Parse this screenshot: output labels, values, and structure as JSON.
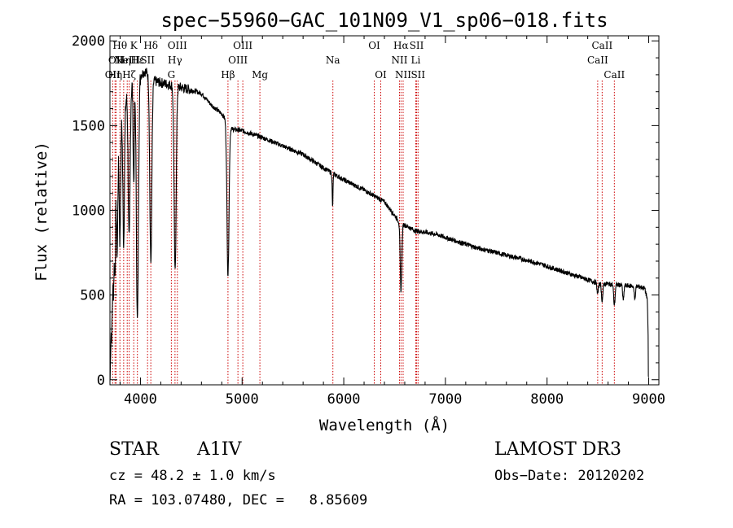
{
  "chart_data": {
    "type": "line",
    "title": "spec−55960−GAC_101N09_V1_sp06−018.fits",
    "xlabel": "Wavelength (Å)",
    "ylabel": "Flux (relative)",
    "xlim": [
      3700,
      9100
    ],
    "ylim": [
      -30,
      2030
    ],
    "x_ticks": [
      {
        "value": 4000,
        "label": "4000"
      },
      {
        "value": 5000,
        "label": "5000"
      },
      {
        "value": 6000,
        "label": "6000"
      },
      {
        "value": 7000,
        "label": "7000"
      },
      {
        "value": 8000,
        "label": "8000"
      },
      {
        "value": 9000,
        "label": "9000"
      }
    ],
    "y_ticks": [
      {
        "value": 0,
        "label": "0"
      },
      {
        "value": 500,
        "label": "500"
      },
      {
        "value": 1000,
        "label": "1000"
      },
      {
        "value": 1500,
        "label": "1500"
      },
      {
        "value": 2000,
        "label": "2000"
      }
    ],
    "continuum": [
      [
        3702,
        0
      ],
      [
        3712,
        450
      ],
      [
        3725,
        900
      ],
      [
        3740,
        1150
      ],
      [
        3760,
        1350
      ],
      [
        3790,
        1500
      ],
      [
        3830,
        1600
      ],
      [
        3880,
        1700
      ],
      [
        3940,
        1780
      ],
      [
        4000,
        1800
      ],
      [
        4050,
        1820
      ],
      [
        4150,
        1760
      ],
      [
        4300,
        1740
      ],
      [
        4500,
        1710
      ],
      [
        4600,
        1690
      ],
      [
        4700,
        1620
      ],
      [
        4800,
        1570
      ],
      [
        4900,
        1480
      ],
      [
        5000,
        1470
      ],
      [
        5200,
        1430
      ],
      [
        5400,
        1380
      ],
      [
        5600,
        1330
      ],
      [
        5800,
        1250
      ],
      [
        6000,
        1180
      ],
      [
        6200,
        1120
      ],
      [
        6400,
        1050
      ],
      [
        6550,
        930
      ],
      [
        6700,
        880
      ],
      [
        6900,
        860
      ],
      [
        7100,
        820
      ],
      [
        7300,
        780
      ],
      [
        7500,
        750
      ],
      [
        7700,
        720
      ],
      [
        7900,
        690
      ],
      [
        8100,
        650
      ],
      [
        8300,
        610
      ],
      [
        8500,
        570
      ],
      [
        8700,
        560
      ],
      [
        8900,
        550
      ],
      [
        8960,
        540
      ],
      [
        8985,
        480
      ],
      [
        8993,
        300
      ],
      [
        9000,
        150
      ]
    ],
    "absorption_features": [
      {
        "center": 3720,
        "width": 6,
        "depth": 400
      },
      {
        "center": 3735,
        "width": 6,
        "depth": 500
      },
      {
        "center": 3750,
        "width": 6,
        "depth": 600
      },
      {
        "center": 3771,
        "width": 7,
        "depth": 650
      },
      {
        "center": 3798,
        "width": 7,
        "depth": 700
      },
      {
        "center": 3835,
        "width": 8,
        "depth": 800
      },
      {
        "center": 3889,
        "width": 9,
        "depth": 900
      },
      {
        "center": 3934,
        "width": 6,
        "depth": 600
      },
      {
        "center": 3970,
        "width": 10,
        "depth": 1450
      },
      {
        "center": 4102,
        "width": 10,
        "depth": 1100
      },
      {
        "center": 4341,
        "width": 10,
        "depth": 1100
      },
      {
        "center": 4861,
        "width": 10,
        "depth": 900
      },
      {
        "center": 5890,
        "width": 4,
        "depth": 200
      },
      {
        "center": 6563,
        "width": 8,
        "depth": 400
      },
      {
        "center": 8498,
        "width": 7,
        "depth": 60
      },
      {
        "center": 8542,
        "width": 7,
        "depth": 100
      },
      {
        "center": 8662,
        "width": 7,
        "depth": 120
      },
      {
        "center": 8750,
        "width": 6,
        "depth": 90
      },
      {
        "center": 8863,
        "width": 6,
        "depth": 80
      }
    ],
    "spectral_lines": [
      {
        "wavelength": 3727,
        "label": "OII",
        "row": 2
      },
      {
        "wavelength": 3750,
        "label": "Hη",
        "row": 2
      },
      {
        "wavelength": 3760,
        "label": "OII",
        "row": 1
      },
      {
        "wavelength": 3798,
        "label": "Hθ",
        "row": 0
      },
      {
        "wavelength": 3835,
        "label": "Hη",
        "row": 1
      },
      {
        "wavelength": 3870,
        "label": "NeIII",
        "row": 1
      },
      {
        "wavelength": 3889,
        "label": "Hζ",
        "row": 2
      },
      {
        "wavelength": 3934,
        "label": "K",
        "row": 0
      },
      {
        "wavelength": 3970,
        "label": "Hε",
        "row": 1
      },
      {
        "wavelength": 4070,
        "label": "SII",
        "row": 1
      },
      {
        "wavelength": 4102,
        "label": "Hδ",
        "row": 0
      },
      {
        "wavelength": 4304,
        "label": "G",
        "row": 2
      },
      {
        "wavelength": 4340,
        "label": "Hγ",
        "row": 1
      },
      {
        "wavelength": 4363,
        "label": "OIII",
        "row": 0
      },
      {
        "wavelength": 4861,
        "label": "Hβ",
        "row": 2
      },
      {
        "wavelength": 4959,
        "label": "OIII",
        "row": 1
      },
      {
        "wavelength": 5007,
        "label": "OIII",
        "row": 0
      },
      {
        "wavelength": 5175,
        "label": "Mg",
        "row": 2
      },
      {
        "wavelength": 5893,
        "label": "Na",
        "row": 1
      },
      {
        "wavelength": 6300,
        "label": "OI",
        "row": 0
      },
      {
        "wavelength": 6364,
        "label": "OI",
        "row": 2
      },
      {
        "wavelength": 6548,
        "label": "NII",
        "row": 1
      },
      {
        "wavelength": 6563,
        "label": "Hα",
        "row": 0
      },
      {
        "wavelength": 6584,
        "label": "NII",
        "row": 2
      },
      {
        "wavelength": 6708,
        "label": "Li",
        "row": 1
      },
      {
        "wavelength": 6717,
        "label": "SII",
        "row": 0
      },
      {
        "wavelength": 6731,
        "label": "SII",
        "row": 2
      },
      {
        "wavelength": 8498,
        "label": "CaII",
        "row": 1
      },
      {
        "wavelength": 8542,
        "label": "CaII",
        "row": 0
      },
      {
        "wavelength": 8662,
        "label": "CaII",
        "row": 2
      }
    ],
    "line_color": "#000000",
    "marker_color": "#cc0000",
    "grid": false
  },
  "info": {
    "object_class": "STAR",
    "subclass": "A1IV",
    "redshift": "cz = 48.2 ± 1.0 km/s",
    "coords": "RA = 103.07480, DEC =   8.85609",
    "survey": "LAMOST DR3",
    "obs_date": "Obs−Date: 20120202"
  }
}
